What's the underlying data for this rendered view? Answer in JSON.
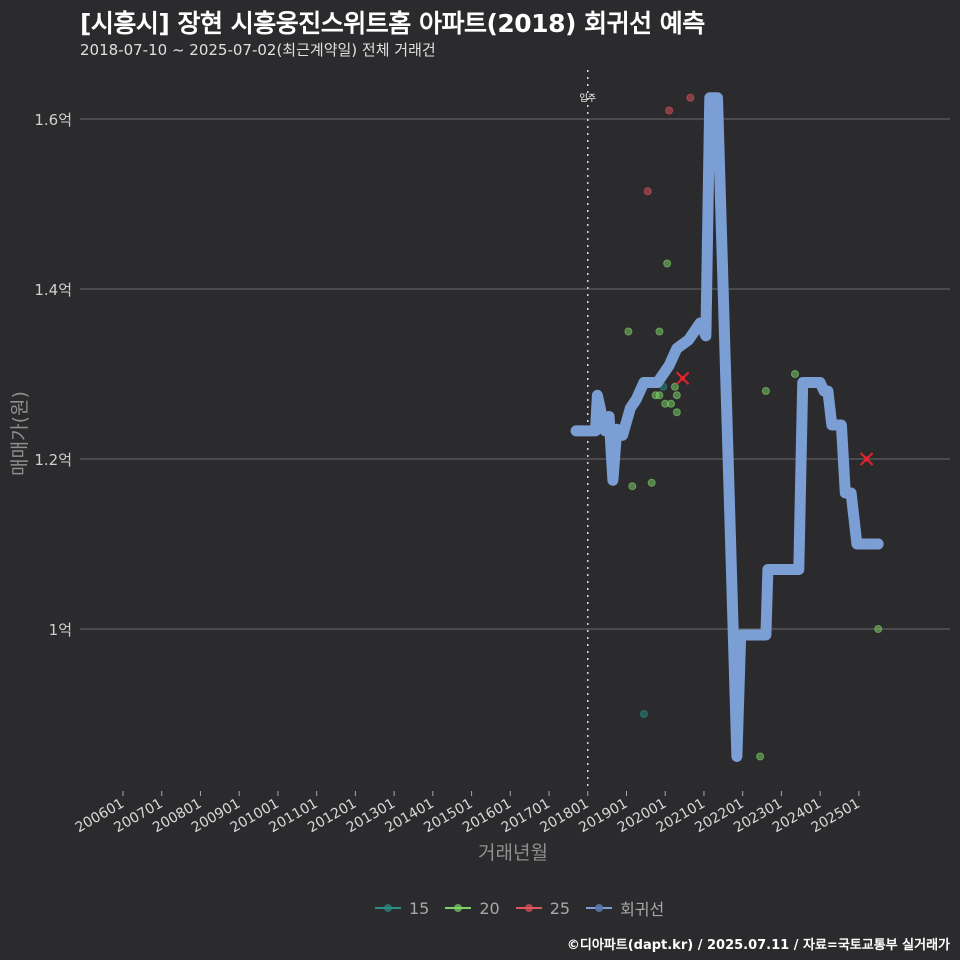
{
  "header": {
    "title": "[시흥시] 장현 시흥웅진스위트홈 아파트(2018) 회귀선 예측",
    "subtitle": "2018-07-10 ~ 2025-07-02(최근계약일) 전체 거래건"
  },
  "axes": {
    "ylabel": "매매가(원)",
    "xlabel": "거래년월"
  },
  "legend": {
    "items": [
      {
        "label": "15",
        "color": "#2a8c82"
      },
      {
        "label": "20",
        "color": "#7fd36a"
      },
      {
        "label": "25",
        "color": "#e0525e"
      },
      {
        "label": "회귀선",
        "color": "#7b9fd4"
      }
    ]
  },
  "annotation": {
    "label": "입주",
    "x": "201807"
  },
  "footer": {
    "credit": "©디아파트(dapt.kr) / 2025.07.11 / 자료=국토교통부 실거래가"
  },
  "chart_data": {
    "type": "scatter",
    "title": "[시흥시] 장현 시흥웅진스위트홈 아파트(2018) 회귀선 예측",
    "subtitle": "2018-07-10 ~ 2025-07-02(최근계약일) 전체 거래건",
    "xlabel": "거래년월",
    "ylabel": "매매가(원)",
    "x_ticks": [
      "200601",
      "200701",
      "200801",
      "200901",
      "201001",
      "201101",
      "201201",
      "201301",
      "201401",
      "201501",
      "201601",
      "201701",
      "201801",
      "201901",
      "202001",
      "202101",
      "202201",
      "202301",
      "202401",
      "202501"
    ],
    "y_ticks": [
      "1억",
      "1.2억",
      "1.4억",
      "1.6억"
    ],
    "y_tick_values": [
      1.0,
      1.2,
      1.4,
      1.6
    ],
    "ylim": [
      0.81,
      1.65
    ],
    "grid": "horizontal",
    "legend_position": "bottom",
    "vline": {
      "x": 2018.0,
      "label": "입주",
      "style": "dotted"
    },
    "series": [
      {
        "name": "15",
        "color": "#2a8c82",
        "points": [
          [
            2019.45,
            0.9
          ],
          [
            2019.95,
            1.285
          ]
        ]
      },
      {
        "name": "20",
        "color": "#7fd36a",
        "points": [
          [
            2018.45,
            1.235
          ],
          [
            2019.05,
            1.35
          ],
          [
            2019.15,
            1.168
          ],
          [
            2019.65,
            1.172
          ],
          [
            2019.75,
            1.275
          ],
          [
            2019.85,
            1.35
          ],
          [
            2019.85,
            1.275
          ],
          [
            2020.0,
            1.265
          ],
          [
            2020.05,
            1.43
          ],
          [
            2020.15,
            1.265
          ],
          [
            2020.25,
            1.285
          ],
          [
            2020.3,
            1.255
          ],
          [
            2020.3,
            1.275
          ],
          [
            2022.45,
            0.85
          ],
          [
            2022.6,
            1.28
          ],
          [
            2023.35,
            1.3
          ],
          [
            2025.5,
            1.0
          ]
        ]
      },
      {
        "name": "25",
        "color": "#e0525e",
        "points": [
          [
            2019.55,
            1.515
          ],
          [
            2020.1,
            1.61
          ],
          [
            2020.65,
            1.625
          ]
        ]
      },
      {
        "name": "회귀선",
        "color": "#7b9fd4",
        "type": "step-line",
        "points": [
          [
            2017.7,
            1.233
          ],
          [
            2018.2,
            1.233
          ],
          [
            2018.25,
            1.275
          ],
          [
            2018.45,
            1.233
          ],
          [
            2018.55,
            1.25
          ],
          [
            2018.65,
            1.175
          ],
          [
            2018.75,
            1.235
          ],
          [
            2018.9,
            1.228
          ],
          [
            2019.1,
            1.26
          ],
          [
            2019.25,
            1.27
          ],
          [
            2019.45,
            1.29
          ],
          [
            2019.8,
            1.29
          ],
          [
            2020.1,
            1.31
          ],
          [
            2020.3,
            1.33
          ],
          [
            2020.6,
            1.34
          ],
          [
            2020.9,
            1.36
          ],
          [
            2021.05,
            1.345
          ],
          [
            2021.15,
            1.625
          ],
          [
            2021.35,
            1.625
          ],
          [
            2021.85,
            0.85
          ],
          [
            2021.95,
            0.993
          ],
          [
            2022.6,
            0.993
          ],
          [
            2022.65,
            1.07
          ],
          [
            2023.45,
            1.07
          ],
          [
            2023.55,
            1.29
          ],
          [
            2024.0,
            1.29
          ],
          [
            2024.1,
            1.28
          ],
          [
            2024.2,
            1.28
          ],
          [
            2024.3,
            1.24
          ],
          [
            2024.55,
            1.24
          ],
          [
            2024.65,
            1.16
          ],
          [
            2024.8,
            1.16
          ],
          [
            2024.95,
            1.1
          ],
          [
            2025.5,
            1.1
          ]
        ]
      }
    ],
    "predicted_markers": [
      {
        "x": 2020.45,
        "y": 1.295,
        "color": "#e0252b",
        "shape": "x"
      },
      {
        "x": 2025.2,
        "y": 1.2,
        "color": "#e0252b",
        "shape": "x"
      }
    ]
  }
}
